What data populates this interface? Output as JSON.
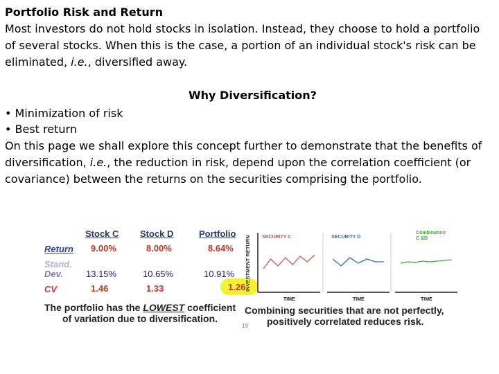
{
  "title": "Portfolio Risk and Return",
  "intro_lines": [
    "Most investors do not hold stocks in isolation. Instead, they choose to hold a portfolio",
    "of several stocks. When this is the case, a portion of an individual stock's risk can be",
    "eliminated, i.e., diversified away."
  ],
  "intro_line3_parts": {
    "pre": "eliminated, ",
    "em": "i.e.",
    "post": ", diversified away."
  },
  "subtitle": "Why Diversification?",
  "bullets": [
    "• Minimization of risk",
    "• Best return"
  ],
  "body_line1": "On this page we shall explore this concept further to demonstrate that the benefits of",
  "body_line2_parts": {
    "pre": "diversification, ",
    "em": "i.e.",
    "post": ", the reduction in risk, depend upon the correlation coefficient (or"
  },
  "body_line3": "covariance) between the returns on the securities comprising the portfolio.",
  "table": {
    "headers": [
      "Stock C",
      "Stock D",
      "Portfolio"
    ],
    "rows": [
      {
        "label": "Return",
        "values": [
          "9.00%",
          "8.00%",
          "8.64%"
        ]
      },
      {
        "label_lines": [
          "Stand.",
          "Dev."
        ],
        "values": [
          "13.15%",
          "10.65%",
          "10.91%"
        ]
      },
      {
        "label": "CV",
        "values": [
          "1.46",
          "1.33",
          "1.26"
        ]
      }
    ],
    "caption_parts": {
      "pre": "The portfolio has the ",
      "em": "LOWEST",
      "post": " coefficient"
    },
    "caption_line2": "of variation due to diversification."
  },
  "charts": {
    "y_axis_label": "INVESTMENT RETURN",
    "panels": [
      {
        "title": "SECURITY C",
        "color": "#d9534f",
        "xlabel": "TIME",
        "values": [
          20,
          34,
          24,
          36,
          26,
          38,
          30,
          40
        ]
      },
      {
        "title": "SECURITY D",
        "color": "#2a6fc9",
        "xlabel": "TIME",
        "values": [
          34,
          24,
          36,
          28,
          34,
          30,
          30
        ]
      },
      {
        "title_lines": [
          "Combination",
          "C &D"
        ],
        "color": "#3aa635",
        "xlabel": "TIME",
        "values": [
          28,
          30,
          29,
          31,
          30,
          31,
          32,
          33
        ]
      }
    ],
    "caption_line1": "Combining securities that are not perfectly,",
    "caption_line2": "positively correlated reduces risk.",
    "footnote": "19"
  }
}
